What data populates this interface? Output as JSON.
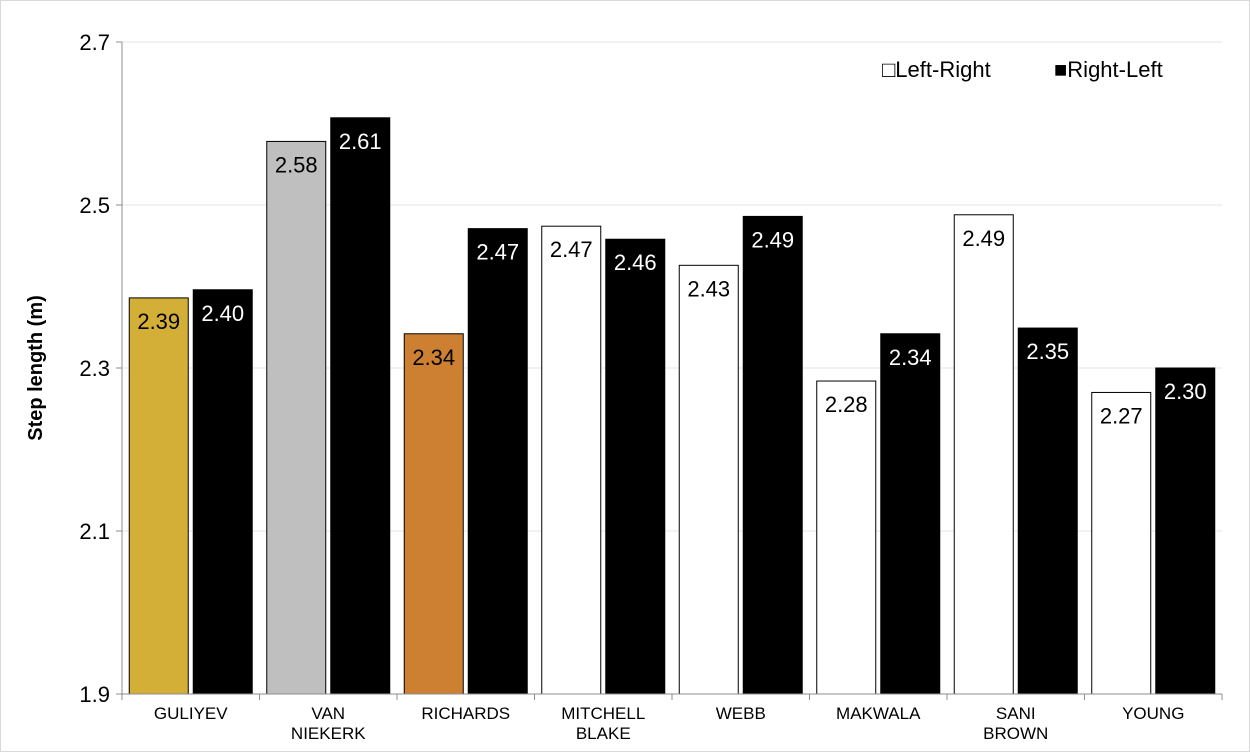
{
  "chart_data": {
    "type": "bar",
    "title": "",
    "xlabel": "",
    "ylabel": "Step length (m)",
    "ylim": [
      1.9,
      2.7
    ],
    "yticks": [
      "1.9",
      "2.1",
      "2.3",
      "2.5",
      "2.7"
    ],
    "grid": true,
    "legend_position": "top-right",
    "categories": [
      [
        "GULIYEV"
      ],
      [
        "VAN",
        "NIEKERK"
      ],
      [
        "RICHARDS"
      ],
      [
        "MITCHELL",
        "BLAKE"
      ],
      [
        "WEBB"
      ],
      [
        "MAKWALA"
      ],
      [
        "SANI",
        "BROWN"
      ],
      [
        "YOUNG"
      ]
    ],
    "series": [
      {
        "name": "Left-Right",
        "legend_symbol": "□",
        "values": [
          2.386,
          2.578,
          2.342,
          2.474,
          2.426,
          2.284,
          2.488,
          2.27
        ],
        "labels": [
          "2.39",
          "2.58",
          "2.34",
          "2.47",
          "2.43",
          "2.28",
          "2.49",
          "2.27"
        ],
        "colors": [
          "#D4AF37",
          "#BFBFBF",
          "#CD7F32",
          "#FFFFFF",
          "#FFFFFF",
          "#FFFFFF",
          "#FFFFFF",
          "#FFFFFF"
        ],
        "label_colors": [
          "#000000",
          "#000000",
          "#000000",
          "#000000",
          "#000000",
          "#000000",
          "#000000",
          "#000000"
        ]
      },
      {
        "name": "Right-Left",
        "legend_symbol": "■",
        "values": [
          2.396,
          2.607,
          2.471,
          2.458,
          2.486,
          2.342,
          2.349,
          2.3
        ],
        "labels": [
          "2.40",
          "2.61",
          "2.47",
          "2.46",
          "2.49",
          "2.34",
          "2.35",
          "2.30"
        ],
        "colors": [
          "#000000",
          "#000000",
          "#000000",
          "#000000",
          "#000000",
          "#000000",
          "#000000",
          "#000000"
        ],
        "label_colors": [
          "#FFFFFF",
          "#FFFFFF",
          "#FFFFFF",
          "#FFFFFF",
          "#FFFFFF",
          "#FFFFFF",
          "#FFFFFF",
          "#FFFFFF"
        ]
      }
    ]
  }
}
